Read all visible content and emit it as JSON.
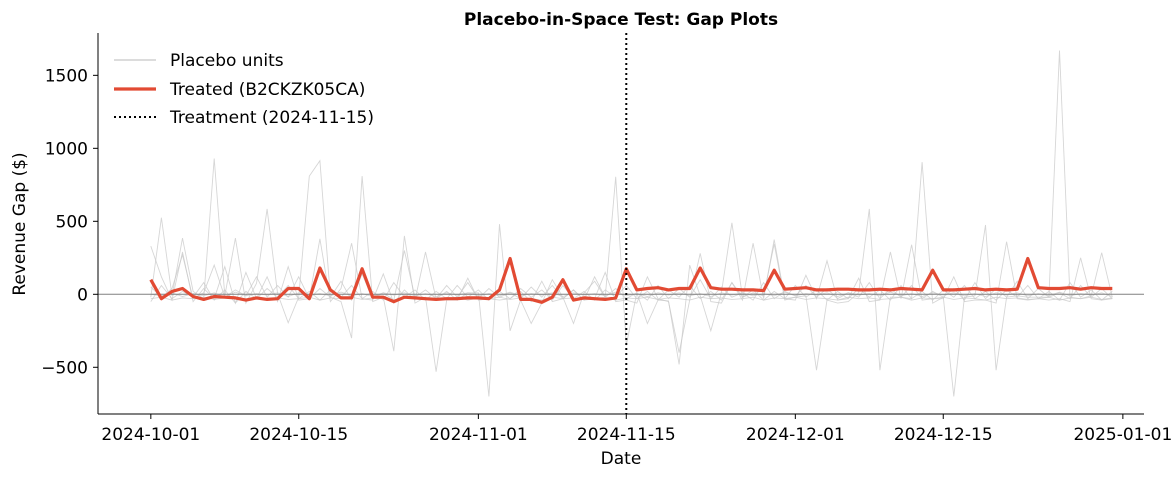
{
  "chart_data": {
    "type": "line",
    "title": "Placebo-in-Space Test: Gap Plots",
    "xlabel": "Date",
    "ylabel": "Revenue Gap ($)",
    "xlim": [
      "2024-09-26",
      "2025-01-03"
    ],
    "ylim": [
      -820,
      1790
    ],
    "x_ticks": [
      "2024-10-01",
      "2024-10-15",
      "2024-11-01",
      "2024-11-15",
      "2024-12-01",
      "2024-12-15",
      "2025-01-01"
    ],
    "y_ticks": [
      -500,
      0,
      500,
      1000,
      1500
    ],
    "y_tick_labels": [
      "−500",
      "0",
      "500",
      "1000",
      "1500"
    ],
    "grid": false,
    "legend_position": "top-left",
    "legend": [
      {
        "label": "Placebo units",
        "style": "thin-gray"
      },
      {
        "label": "Treated (B2CKZK05CA)",
        "style": "thick-red"
      },
      {
        "label": "Treatment (2024-11-15)",
        "style": "dotted-black"
      }
    ],
    "treatment_date": "2024-11-15",
    "zero_line": 0,
    "colors": {
      "treated": "#e24a33",
      "placebo": "#c8c8c8",
      "treatment": "#000000",
      "zero": "#808080"
    },
    "treated_series": {
      "name": "Treated (B2CKZK05CA)",
      "x": [
        "2024-10-01",
        "2024-10-02",
        "2024-10-03",
        "2024-10-04",
        "2024-10-05",
        "2024-10-06",
        "2024-10-07",
        "2024-10-08",
        "2024-10-09",
        "2024-10-10",
        "2024-10-11",
        "2024-10-12",
        "2024-10-13",
        "2024-10-14",
        "2024-10-15",
        "2024-10-16",
        "2024-10-17",
        "2024-10-18",
        "2024-10-19",
        "2024-10-20",
        "2024-10-21",
        "2024-10-22",
        "2024-10-23",
        "2024-10-24",
        "2024-10-25",
        "2024-10-26",
        "2024-10-27",
        "2024-10-28",
        "2024-10-29",
        "2024-10-30",
        "2024-10-31",
        "2024-11-01",
        "2024-11-02",
        "2024-11-03",
        "2024-11-04",
        "2024-11-05",
        "2024-11-06",
        "2024-11-07",
        "2024-11-08",
        "2024-11-09",
        "2024-11-10",
        "2024-11-11",
        "2024-11-12",
        "2024-11-13",
        "2024-11-14",
        "2024-11-15",
        "2024-11-16",
        "2024-11-17",
        "2024-11-18",
        "2024-11-19",
        "2024-11-20",
        "2024-11-21",
        "2024-11-22",
        "2024-11-23",
        "2024-11-24",
        "2024-11-25",
        "2024-11-26",
        "2024-11-27",
        "2024-11-28",
        "2024-11-29",
        "2024-11-30",
        "2024-12-01",
        "2024-12-02",
        "2024-12-03",
        "2024-12-04",
        "2024-12-05",
        "2024-12-06",
        "2024-12-07",
        "2024-12-08",
        "2024-12-09",
        "2024-12-10",
        "2024-12-11",
        "2024-12-12",
        "2024-12-13",
        "2024-12-14",
        "2024-12-15",
        "2024-12-16",
        "2024-12-17",
        "2024-12-18",
        "2024-12-19",
        "2024-12-20",
        "2024-12-21",
        "2024-12-22",
        "2024-12-23",
        "2024-12-24",
        "2024-12-25",
        "2024-12-26",
        "2024-12-27",
        "2024-12-28",
        "2024-12-29",
        "2024-12-30",
        "2024-12-31"
      ],
      "y": [
        100,
        -30,
        20,
        40,
        -15,
        -35,
        -15,
        -20,
        -25,
        -40,
        -25,
        -35,
        -30,
        40,
        40,
        -30,
        180,
        30,
        -25,
        -25,
        175,
        -20,
        -20,
        -50,
        -20,
        -25,
        -30,
        -35,
        -30,
        -30,
        -25,
        -25,
        -30,
        30,
        245,
        -35,
        -35,
        -55,
        -20,
        100,
        -40,
        -25,
        -30,
        -35,
        -25,
        175,
        30,
        40,
        45,
        30,
        40,
        40,
        180,
        45,
        35,
        35,
        30,
        30,
        25,
        165,
        35,
        40,
        45,
        30,
        30,
        35,
        35,
        30,
        30,
        35,
        30,
        40,
        35,
        30,
        165,
        30,
        30,
        35,
        40,
        30,
        35,
        30,
        35,
        245,
        45,
        40,
        40,
        45,
        35,
        45,
        40,
        40
      ]
    },
    "placebo_series": [
      {
        "y": [
          -20,
          525,
          -10,
          385,
          20,
          -30,
          930,
          -10,
          385,
          -60,
          75,
          585,
          5,
          -195,
          -20,
          810,
          915,
          -20,
          -50,
          -300,
          810,
          -50,
          -20,
          -390,
          400,
          -60,
          -20,
          -530,
          -40,
          -40,
          10,
          10,
          -700,
          480,
          -250,
          -40,
          -200,
          -60,
          100,
          -20,
          -200,
          10,
          90,
          -20,
          805,
          -350,
          10,
          -200,
          -40,
          -45,
          -480,
          200,
          -10,
          -250,
          10,
          490,
          -20,
          10,
          -10,
          345,
          -40,
          -20,
          -10,
          -520,
          -40,
          -60,
          -50,
          10,
          585,
          -520,
          -20,
          -20,
          -30,
          905,
          -60,
          -20,
          -700,
          -20,
          -10,
          475,
          -520,
          -20,
          -10,
          -20,
          -20,
          -20,
          1670,
          -20,
          -30,
          -10,
          285,
          -20
        ]
      },
      {
        "y": [
          330,
          120,
          -40,
          290,
          -50,
          40,
          -30,
          190,
          -60,
          150,
          -30,
          120,
          -50,
          190,
          -40,
          -30,
          380,
          -50,
          40,
          350,
          -30,
          -40,
          140,
          -60,
          30,
          -40,
          290,
          -30,
          20,
          -40,
          110,
          -40,
          -30,
          -40,
          -30,
          20,
          -50,
          90,
          -50,
          -30,
          30,
          -40,
          -30,
          150,
          -50,
          -40,
          -60,
          120,
          -30,
          -50,
          -400,
          -40,
          280,
          -50,
          -60,
          80,
          -40,
          350,
          -30,
          375,
          -30,
          -40,
          130,
          -30,
          230,
          -40,
          -30,
          110,
          -50,
          -40,
          290,
          -30,
          340,
          -40,
          -30,
          -30,
          120,
          -50,
          -40,
          -40,
          -60,
          360,
          -30,
          -40,
          -30,
          -40,
          -30,
          -50,
          250,
          -30,
          -40,
          -30
        ]
      },
      {
        "y": [
          50,
          -20,
          40,
          270,
          -30,
          10,
          200,
          -20,
          30,
          -10,
          120,
          -20,
          60,
          -20,
          120,
          -30,
          40,
          -20,
          90,
          -40,
          140,
          -30,
          10,
          -40,
          300,
          -20,
          30,
          -30,
          60,
          -20,
          80,
          -30,
          40,
          -20,
          10,
          -30,
          50,
          -20,
          60,
          -30,
          30,
          -40,
          120,
          -20,
          40,
          -30,
          10,
          -40,
          60,
          -30,
          40,
          -20,
          100,
          -30,
          50,
          -20,
          10,
          -40,
          80,
          -30,
          20,
          -10,
          60,
          -20,
          40,
          -30,
          10,
          -20,
          80,
          -30,
          40,
          -20,
          60,
          -30,
          20,
          -20,
          40,
          -40,
          80,
          -30,
          40,
          -20,
          90,
          -30,
          40,
          -20,
          10,
          -30,
          60,
          -20,
          40,
          -30
        ]
      },
      {
        "y": [
          -50,
          60,
          -30,
          20,
          -20,
          80,
          -40,
          30,
          -60,
          20,
          -30,
          40,
          -20,
          60,
          -30,
          20,
          -40,
          30,
          -20,
          60,
          -30,
          20,
          -40,
          80,
          -20,
          30,
          -40,
          20,
          -30,
          60,
          -20,
          30,
          -40,
          20,
          -30,
          40,
          -20,
          30,
          -40,
          60,
          -30,
          20,
          -40,
          30,
          -20,
          60,
          -30,
          20,
          -40,
          30,
          -20,
          60,
          -30,
          20,
          -40,
          80,
          -20,
          30,
          -40,
          20,
          -30,
          60,
          -20,
          30,
          -40,
          20,
          -30,
          40,
          -20,
          30,
          -40,
          60,
          -30,
          20,
          -40,
          30,
          -20,
          60,
          -30,
          20,
          -40,
          30,
          -20,
          60,
          -30,
          20,
          -40,
          80,
          -20,
          30,
          -40,
          20
        ]
      },
      {
        "y": [
          0,
          -10,
          10,
          -15,
          5,
          -10,
          10,
          -20,
          15,
          -10,
          5,
          -5,
          10,
          -15,
          10,
          -5,
          5,
          -10,
          15,
          -10,
          5,
          -15,
          10,
          -5,
          10,
          -10,
          5,
          -15,
          10,
          -5,
          10,
          -10,
          5,
          -10,
          15,
          -10,
          5,
          -5,
          10,
          -15,
          10,
          -5,
          5,
          -10,
          15,
          -10,
          5,
          -15,
          10,
          -5,
          10,
          -10,
          5,
          -15,
          10,
          -5,
          10,
          -10,
          5,
          -10,
          15,
          -10,
          5,
          -5,
          10,
          -15,
          10,
          -5,
          5,
          -10,
          15,
          -10,
          5,
          -15,
          10,
          -5,
          10,
          -10,
          5,
          -15,
          10,
          -5,
          10,
          -10,
          5,
          -10,
          15,
          -10,
          5,
          -5,
          10,
          -15
        ]
      },
      {
        "y": [
          -30,
          -20,
          -40,
          -25,
          -30,
          -20,
          -35,
          -25,
          -30,
          -40,
          -20,
          -30,
          -25,
          -35,
          -30,
          -20,
          -40,
          -25,
          -30,
          -20,
          -35,
          -25,
          -30,
          -40,
          -20,
          -30,
          -25,
          -35,
          -30,
          -20,
          -40,
          -25,
          -30,
          -20,
          -35,
          -25,
          -30,
          -40,
          -20,
          -30,
          -25,
          -35,
          -30,
          -20,
          -40,
          -25,
          -30,
          -20,
          -35,
          -25,
          -30,
          -40,
          -20,
          -30,
          -25,
          -35,
          -30,
          -20,
          -40,
          -25,
          -30,
          -20,
          -35,
          -25,
          -30,
          -40,
          -20,
          -30,
          -25,
          -35,
          -30,
          -20,
          -40,
          -25,
          -30,
          -20,
          -35,
          -25,
          -30,
          -40,
          -20,
          -30,
          -25,
          -35,
          -30,
          -20,
          -40,
          -25,
          -30,
          -20,
          -35,
          -25
        ]
      }
    ]
  }
}
